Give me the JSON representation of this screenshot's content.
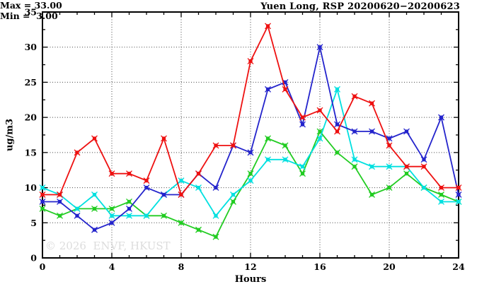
{
  "chart_data": {
    "type": "line",
    "title": "Yuen Long, RSP 20200620−20200623",
    "xlabel": "Hours",
    "ylabel": "ug/m3",
    "xlim": [
      0,
      24
    ],
    "ylim": [
      0,
      35
    ],
    "x_major_ticks": [
      0,
      4,
      8,
      12,
      16,
      20,
      24
    ],
    "x_tick_labels": [
      "0",
      "4",
      "8",
      "12",
      "16",
      "20",
      "24"
    ],
    "x_minor_step": 1,
    "y_major_ticks": [
      0,
      5,
      10,
      15,
      20,
      25,
      30,
      35
    ],
    "y_tick_labels": [
      "0",
      "5",
      "10",
      "15",
      "20",
      "25",
      "30",
      "35"
    ],
    "y_minor_step": 2.5,
    "grid": "dotted",
    "legend": "none",
    "annotations": {
      "max_label": "Max = 33.00",
      "min_label": "Min =  3.00"
    },
    "watermark": "© 2026  ENVF, HKUST",
    "x": [
      0,
      1,
      2,
      3,
      4,
      5,
      6,
      7,
      8,
      9,
      10,
      11,
      12,
      13,
      14,
      15,
      16,
      17,
      18,
      19,
      20,
      21,
      22,
      23,
      24
    ],
    "series": [
      {
        "name": "series-green",
        "color": "#22cc22",
        "values": [
          7,
          6,
          7,
          7,
          7,
          8,
          6,
          6,
          5,
          4,
          3,
          8,
          12,
          17,
          16,
          12,
          18,
          15,
          13,
          9,
          10,
          12,
          10,
          9,
          8
        ]
      },
      {
        "name": "series-cyan",
        "color": "#00e0e0",
        "values": [
          10,
          9,
          7,
          9,
          6,
          6,
          6,
          9,
          11,
          10,
          6,
          9,
          11,
          14,
          14,
          13,
          17,
          24,
          14,
          13,
          13,
          13,
          10,
          8,
          8
        ]
      },
      {
        "name": "series-blue",
        "color": "#2424cc",
        "values": [
          8,
          8,
          6,
          4,
          5,
          7,
          10,
          9,
          9,
          12,
          10,
          16,
          15,
          24,
          25,
          19,
          30,
          19,
          18,
          18,
          17,
          18,
          14,
          20,
          9
        ]
      },
      {
        "name": "series-red",
        "color": "#ee1111",
        "values": [
          9,
          9,
          15,
          17,
          12,
          12,
          11,
          17,
          9,
          12,
          16,
          16,
          28,
          33,
          24,
          20,
          21,
          18,
          23,
          22,
          16,
          13,
          13,
          10,
          10
        ]
      }
    ],
    "colors": {
      "axis": "#000000",
      "grid": "#444444",
      "background": "#ffffff",
      "watermark": "#dcdcdc"
    }
  }
}
